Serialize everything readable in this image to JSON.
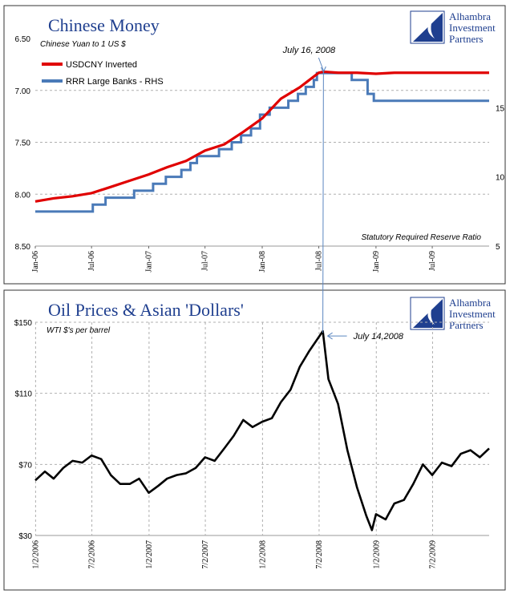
{
  "colors": {
    "title": "#1f3f8f",
    "usdcny": "#e00000",
    "rrr": "#4a7ab8",
    "oil": "#000000",
    "grid": "#b0b0b0",
    "connector": "#5b86c0",
    "logo": "#1f3f8f"
  },
  "logo": {
    "name": "Alhambra Investment Partners",
    "lines": [
      "Alhambra",
      "Investment",
      "Partners"
    ],
    "icon": "crescent-logo-icon"
  },
  "chart_data": [
    {
      "type": "line",
      "title": "Chinese Money",
      "subtitle": "Chinese Yuan to 1 US $",
      "note": "Statutory Required Reserve Ratio",
      "annotation": "July 16, 2008",
      "annotation_x": "2008-07-16",
      "x_ticks": [
        "Jan-06",
        "Jul-06",
        "Jan-07",
        "Jul-07",
        "Jan-08",
        "Jul-08",
        "Jan-09",
        "Jul-09"
      ],
      "x_tick_dates": [
        "2006-01-01",
        "2006-07-01",
        "2007-01-01",
        "2007-07-01",
        "2008-01-01",
        "2008-07-01",
        "2009-01-01",
        "2009-07-01"
      ],
      "xlim": [
        "2006-01-01",
        "2009-12-31"
      ],
      "y_left": {
        "ticks": [
          "6.50",
          "7.00",
          "7.50",
          "8.00",
          "8.50"
        ],
        "range": [
          6.5,
          8.5
        ],
        "inverted": true
      },
      "y_right": {
        "ticks": [
          "5",
          "10",
          "15"
        ],
        "range": [
          5,
          20
        ]
      },
      "grid": true,
      "legend_position": "top-left",
      "series": [
        {
          "name": "USDCNY Inverted",
          "axis": "left",
          "points": [
            [
              "2006-01-01",
              8.07
            ],
            [
              "2006-03-01",
              8.04
            ],
            [
              "2006-05-01",
              8.02
            ],
            [
              "2006-07-01",
              7.99
            ],
            [
              "2006-09-01",
              7.93
            ],
            [
              "2006-11-01",
              7.87
            ],
            [
              "2007-01-01",
              7.81
            ],
            [
              "2007-03-01",
              7.74
            ],
            [
              "2007-05-01",
              7.68
            ],
            [
              "2007-07-01",
              7.58
            ],
            [
              "2007-09-01",
              7.52
            ],
            [
              "2007-11-01",
              7.4
            ],
            [
              "2008-01-01",
              7.27
            ],
            [
              "2008-03-01",
              7.08
            ],
            [
              "2008-05-01",
              6.97
            ],
            [
              "2008-07-01",
              6.83
            ],
            [
              "2008-07-16",
              6.82
            ],
            [
              "2008-09-01",
              6.83
            ],
            [
              "2008-11-01",
              6.83
            ],
            [
              "2009-01-01",
              6.84
            ],
            [
              "2009-03-01",
              6.83
            ],
            [
              "2009-05-01",
              6.83
            ],
            [
              "2009-07-01",
              6.83
            ],
            [
              "2009-09-01",
              6.83
            ],
            [
              "2009-12-31",
              6.83
            ]
          ]
        },
        {
          "name": "RRR Large Banks - RHS",
          "axis": "right",
          "step": true,
          "points": [
            [
              "2006-01-01",
              7.5
            ],
            [
              "2006-07-05",
              8.0
            ],
            [
              "2006-08-15",
              8.5
            ],
            [
              "2006-11-15",
              9.0
            ],
            [
              "2007-01-15",
              9.5
            ],
            [
              "2007-02-25",
              10.0
            ],
            [
              "2007-04-16",
              10.5
            ],
            [
              "2007-05-15",
              11.0
            ],
            [
              "2007-06-05",
              11.5
            ],
            [
              "2007-08-15",
              12.0
            ],
            [
              "2007-09-25",
              12.5
            ],
            [
              "2007-10-25",
              13.0
            ],
            [
              "2007-11-26",
              13.5
            ],
            [
              "2007-12-25",
              14.5
            ],
            [
              "2008-01-25",
              15.0
            ],
            [
              "2008-03-25",
              15.5
            ],
            [
              "2008-04-25",
              16.0
            ],
            [
              "2008-05-20",
              16.5
            ],
            [
              "2008-06-15",
              17.0
            ],
            [
              "2008-06-25",
              17.5
            ],
            [
              "2008-10-15",
              17.0
            ],
            [
              "2008-12-05",
              16.0
            ],
            [
              "2008-12-25",
              15.5
            ],
            [
              "2009-12-31",
              15.5
            ]
          ]
        }
      ]
    },
    {
      "type": "line",
      "title": "Oil Prices & Asian 'Dollars'",
      "subtitle": "WTI $'s per barrel",
      "annotation": "July 14,2008",
      "annotation_x": "2008-07-14",
      "x_ticks": [
        "1/2/2006",
        "7/2/2006",
        "1/2/2007",
        "7/2/2007",
        "1/2/2008",
        "7/2/2008",
        "1/2/2009",
        "7/2/2009"
      ],
      "x_tick_dates": [
        "2006-01-02",
        "2006-07-02",
        "2007-01-02",
        "2007-07-02",
        "2008-01-02",
        "2008-07-02",
        "2009-01-02",
        "2009-07-02"
      ],
      "xlim": [
        "2006-01-01",
        "2009-12-31"
      ],
      "y_left": {
        "ticks": [
          "$150",
          "$110",
          "$70",
          "$30"
        ],
        "range": [
          30,
          150
        ]
      },
      "grid": true,
      "series": [
        {
          "name": "WTI",
          "points": [
            [
              "2006-01-01",
              61
            ],
            [
              "2006-02-01",
              66
            ],
            [
              "2006-03-01",
              62
            ],
            [
              "2006-04-01",
              68
            ],
            [
              "2006-05-01",
              72
            ],
            [
              "2006-06-01",
              71
            ],
            [
              "2006-07-01",
              75
            ],
            [
              "2006-08-01",
              73
            ],
            [
              "2006-09-01",
              64
            ],
            [
              "2006-10-01",
              59
            ],
            [
              "2006-11-01",
              59
            ],
            [
              "2006-12-01",
              62
            ],
            [
              "2007-01-01",
              54
            ],
            [
              "2007-02-01",
              58
            ],
            [
              "2007-03-01",
              62
            ],
            [
              "2007-04-01",
              64
            ],
            [
              "2007-05-01",
              65
            ],
            [
              "2007-06-01",
              68
            ],
            [
              "2007-07-01",
              74
            ],
            [
              "2007-08-01",
              72
            ],
            [
              "2007-09-01",
              79
            ],
            [
              "2007-10-01",
              86
            ],
            [
              "2007-11-01",
              95
            ],
            [
              "2007-12-01",
              91
            ],
            [
              "2008-01-01",
              94
            ],
            [
              "2008-02-01",
              96
            ],
            [
              "2008-03-01",
              105
            ],
            [
              "2008-04-01",
              112
            ],
            [
              "2008-05-01",
              125
            ],
            [
              "2008-06-01",
              134
            ],
            [
              "2008-07-14",
              145
            ],
            [
              "2008-08-01",
              118
            ],
            [
              "2008-09-01",
              104
            ],
            [
              "2008-10-01",
              78
            ],
            [
              "2008-11-01",
              57
            ],
            [
              "2008-12-01",
              41
            ],
            [
              "2008-12-19",
              33
            ],
            [
              "2009-01-01",
              42
            ],
            [
              "2009-02-01",
              39
            ],
            [
              "2009-03-01",
              48
            ],
            [
              "2009-04-01",
              50
            ],
            [
              "2009-05-01",
              59
            ],
            [
              "2009-06-01",
              70
            ],
            [
              "2009-07-01",
              64
            ],
            [
              "2009-08-01",
              71
            ],
            [
              "2009-09-01",
              69
            ],
            [
              "2009-10-01",
              76
            ],
            [
              "2009-11-01",
              78
            ],
            [
              "2009-12-01",
              74
            ],
            [
              "2009-12-31",
              79
            ]
          ]
        }
      ]
    }
  ]
}
